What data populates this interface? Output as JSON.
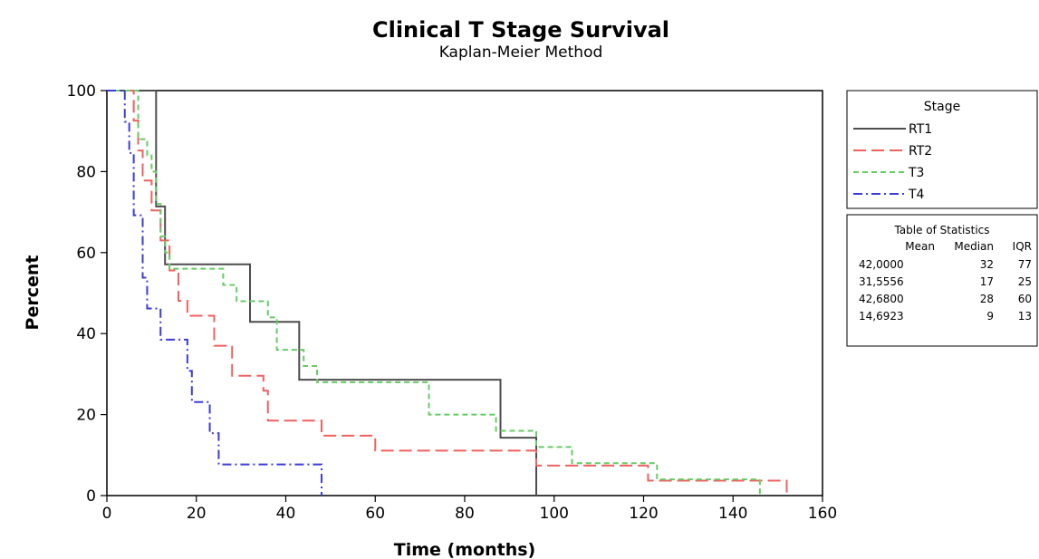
{
  "chart_data": {
    "type": "line",
    "step": true,
    "title": "Clinical T Stage Survival",
    "subtitle": "Kaplan-Meier Method",
    "xlabel": "Time (months)",
    "ylabel": "Percent",
    "xlim": [
      0,
      160
    ],
    "ylim": [
      0,
      100
    ],
    "xticks": [
      0,
      20,
      40,
      60,
      80,
      100,
      120,
      140,
      160
    ],
    "yticks": [
      0,
      20,
      40,
      60,
      80,
      100
    ],
    "grid": false,
    "legend": {
      "title": "Stage",
      "position": "right"
    },
    "series": [
      {
        "name": "RT1",
        "color": "#4d4d4d",
        "dash": "solid",
        "x": [
          0,
          11,
          13,
          32,
          43,
          88,
          96
        ],
        "y": [
          100,
          71.4,
          57.1,
          42.9,
          28.6,
          14.3,
          0
        ]
      },
      {
        "name": "RT2",
        "color": "#f06060",
        "dash": "long-dash",
        "x": [
          0,
          6,
          7,
          8,
          10,
          12,
          14,
          16,
          18,
          24,
          28,
          35,
          36,
          48,
          60,
          96,
          121,
          124,
          152
        ],
        "y": [
          100,
          92.6,
          85.2,
          77.8,
          70.4,
          63.0,
          55.6,
          48.1,
          44.4,
          37.0,
          29.6,
          25.9,
          18.5,
          14.8,
          11.1,
          7.4,
          3.7,
          3.7,
          0
        ]
      },
      {
        "name": "T3",
        "color": "#66cc66",
        "dash": "short-dash",
        "x": [
          0,
          7,
          9,
          10,
          11,
          12,
          13,
          14,
          26,
          29,
          36,
          38,
          44,
          47,
          72,
          87,
          88,
          96,
          104,
          123,
          146
        ],
        "y": [
          100,
          88,
          84,
          80,
          72,
          64,
          60,
          56,
          52,
          48,
          44,
          36,
          32,
          28,
          20,
          16,
          16,
          12,
          8,
          4,
          0
        ]
      },
      {
        "name": "T4",
        "color": "#3c3cdc",
        "dash": "dash-dot",
        "x": [
          0,
          4,
          5,
          6,
          8,
          9,
          10,
          12,
          18,
          19,
          23,
          24,
          25,
          48
        ],
        "y": [
          100,
          92.3,
          84.6,
          69.2,
          53.8,
          46.2,
          46.2,
          38.5,
          30.8,
          23.1,
          15.4,
          15.4,
          7.7,
          0
        ]
      }
    ],
    "statistics_table": {
      "title": "Table of Statistics",
      "headers": [
        "Mean",
        "Median",
        "IQR"
      ],
      "rows": [
        [
          "42,0000",
          "32",
          "77"
        ],
        [
          "31,5556",
          "17",
          "25"
        ],
        [
          "42,6800",
          "28",
          "60"
        ],
        [
          "14,6923",
          "9",
          "13"
        ]
      ]
    }
  }
}
